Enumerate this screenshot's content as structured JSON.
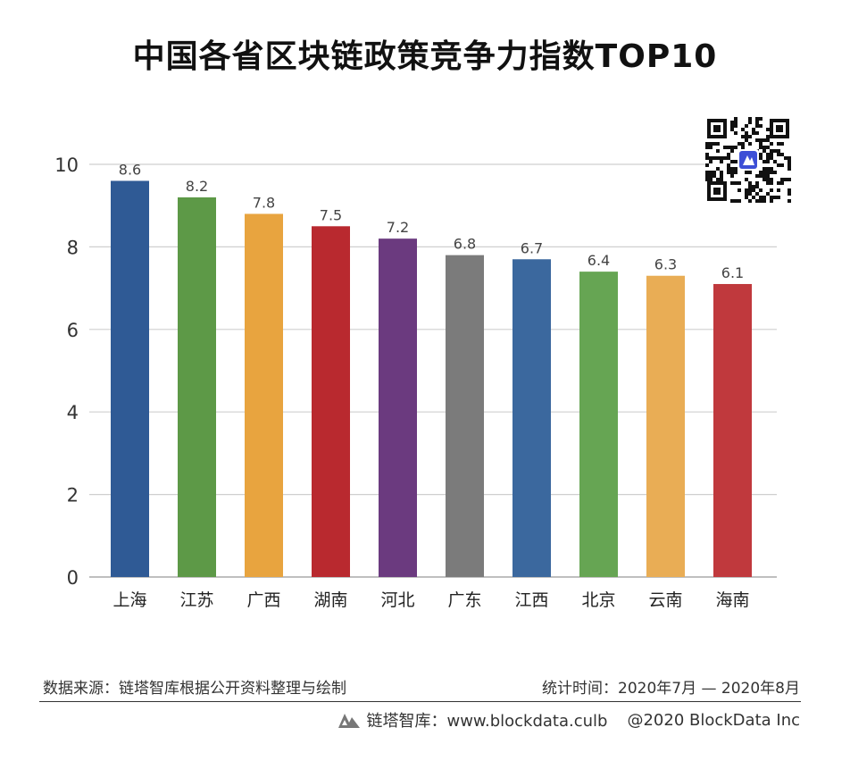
{
  "title": "中国各省区块链政策竞争力指数TOP10",
  "chart_data": {
    "type": "bar",
    "categories": [
      "上海",
      "江苏",
      "广西",
      "湖南",
      "河北",
      "广东",
      "江西",
      "北京",
      "云南",
      "海南"
    ],
    "values": [
      8.6,
      8.2,
      7.8,
      7.5,
      7.2,
      6.8,
      6.7,
      6.4,
      6.3,
      6.1
    ],
    "data_labels": [
      "8.6",
      "8.2",
      "7.8",
      "7.5",
      "7.2",
      "6.8",
      "6.7",
      "6.4",
      "6.3",
      "6.1"
    ],
    "colors": [
      "#2f5a95",
      "#5d9947",
      "#e8a43f",
      "#b9292f",
      "#6b3a7f",
      "#7b7b7b",
      "#3b689e",
      "#66a553",
      "#e9ad55",
      "#c0393d"
    ],
    "ylim": [
      0,
      10
    ],
    "yticks": [
      "0",
      "2",
      "4",
      "6",
      "8",
      "10"
    ],
    "grid": true,
    "legend": "none"
  },
  "qr_code": {
    "icon": "qr-code-icon",
    "logo_color": "#3d4fd6"
  },
  "source": {
    "left": "数据来源：链塔智库根据公开资料整理与绘制",
    "right": "统计时间：2020年7月 — 2020年8月"
  },
  "footer": {
    "brand": "链塔智库：www.blockdata.culb",
    "copyright": "@2020 BlockData  Inc"
  }
}
